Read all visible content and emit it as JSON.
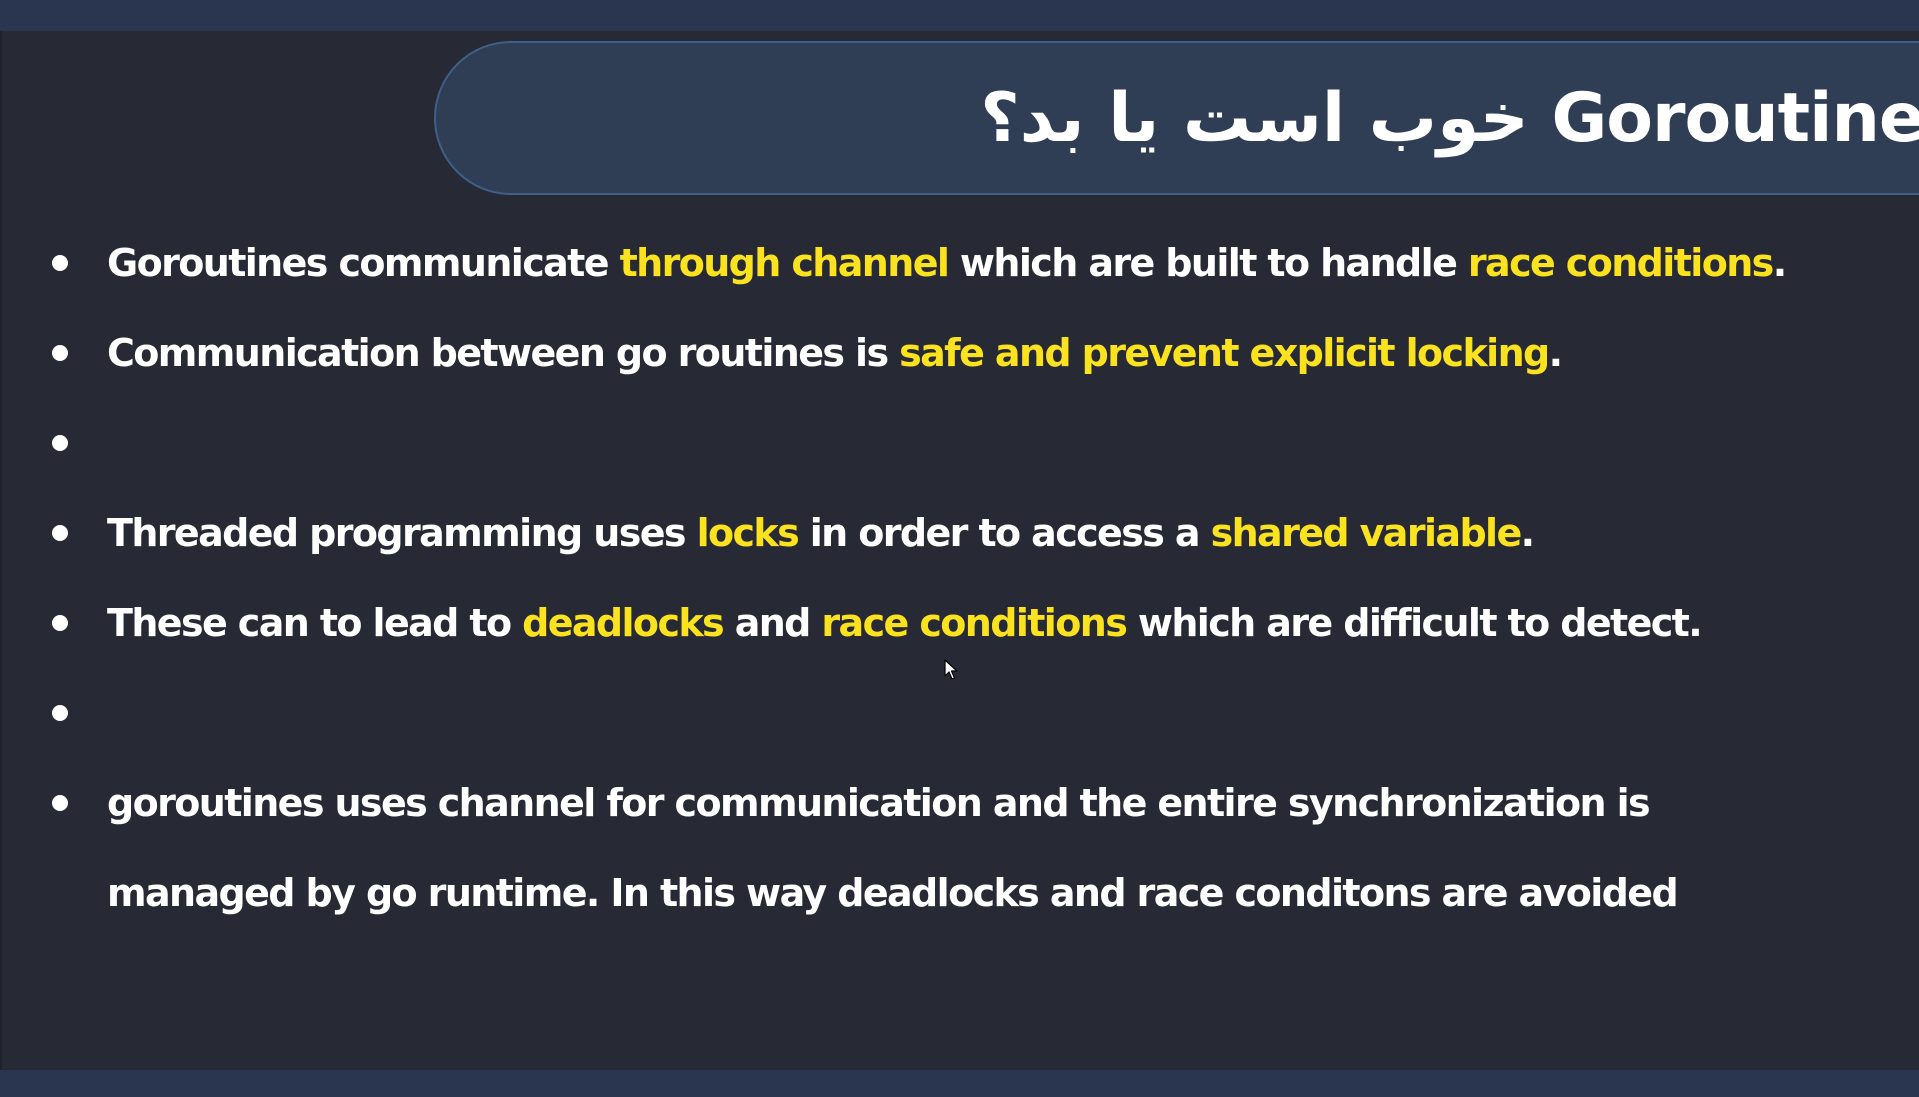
{
  "slide": {
    "title": "Goroutine خوب است یا بد؟",
    "bullets": [
      {
        "segments": [
          {
            "text": "Goroutines communicate ",
            "highlight": false
          },
          {
            "text": "through channel",
            "highlight": true
          },
          {
            "text": " which are built to handle ",
            "highlight": false
          },
          {
            "text": "race conditions",
            "highlight": true
          },
          {
            "text": ".",
            "highlight": false
          }
        ]
      },
      {
        "segments": [
          {
            "text": "Communication between go routines is ",
            "highlight": false
          },
          {
            "text": "safe and prevent explicit locking",
            "highlight": true
          },
          {
            "text": ".",
            "highlight": false
          }
        ]
      },
      {
        "segments": []
      },
      {
        "segments": [
          {
            "text": "Threaded programming uses ",
            "highlight": false
          },
          {
            "text": "locks",
            "highlight": true
          },
          {
            "text": " in order to access a ",
            "highlight": false
          },
          {
            "text": "shared variable",
            "highlight": true
          },
          {
            "text": ".",
            "highlight": false
          }
        ]
      },
      {
        "segments": [
          {
            "text": "These can to lead to ",
            "highlight": false
          },
          {
            "text": "deadlocks",
            "highlight": true
          },
          {
            "text": " and ",
            "highlight": false
          },
          {
            "text": "race conditions",
            "highlight": true
          },
          {
            "text": " which are difficult to detect.",
            "highlight": false
          }
        ]
      },
      {
        "segments": []
      },
      {
        "segments": [
          {
            "text": "goroutines uses channel for communication and the entire synchronization is",
            "highlight": false
          }
        ]
      }
    ],
    "continuation_line": "managed by go runtime. In this way deadlocks and race conditons are avoided"
  },
  "colors": {
    "background": "#272a35",
    "title_box": "#2f3e54",
    "title_border": "#3e5f86",
    "text": "#ffffff",
    "highlight": "#fbe21f",
    "frame_bar": "#2a3550"
  }
}
